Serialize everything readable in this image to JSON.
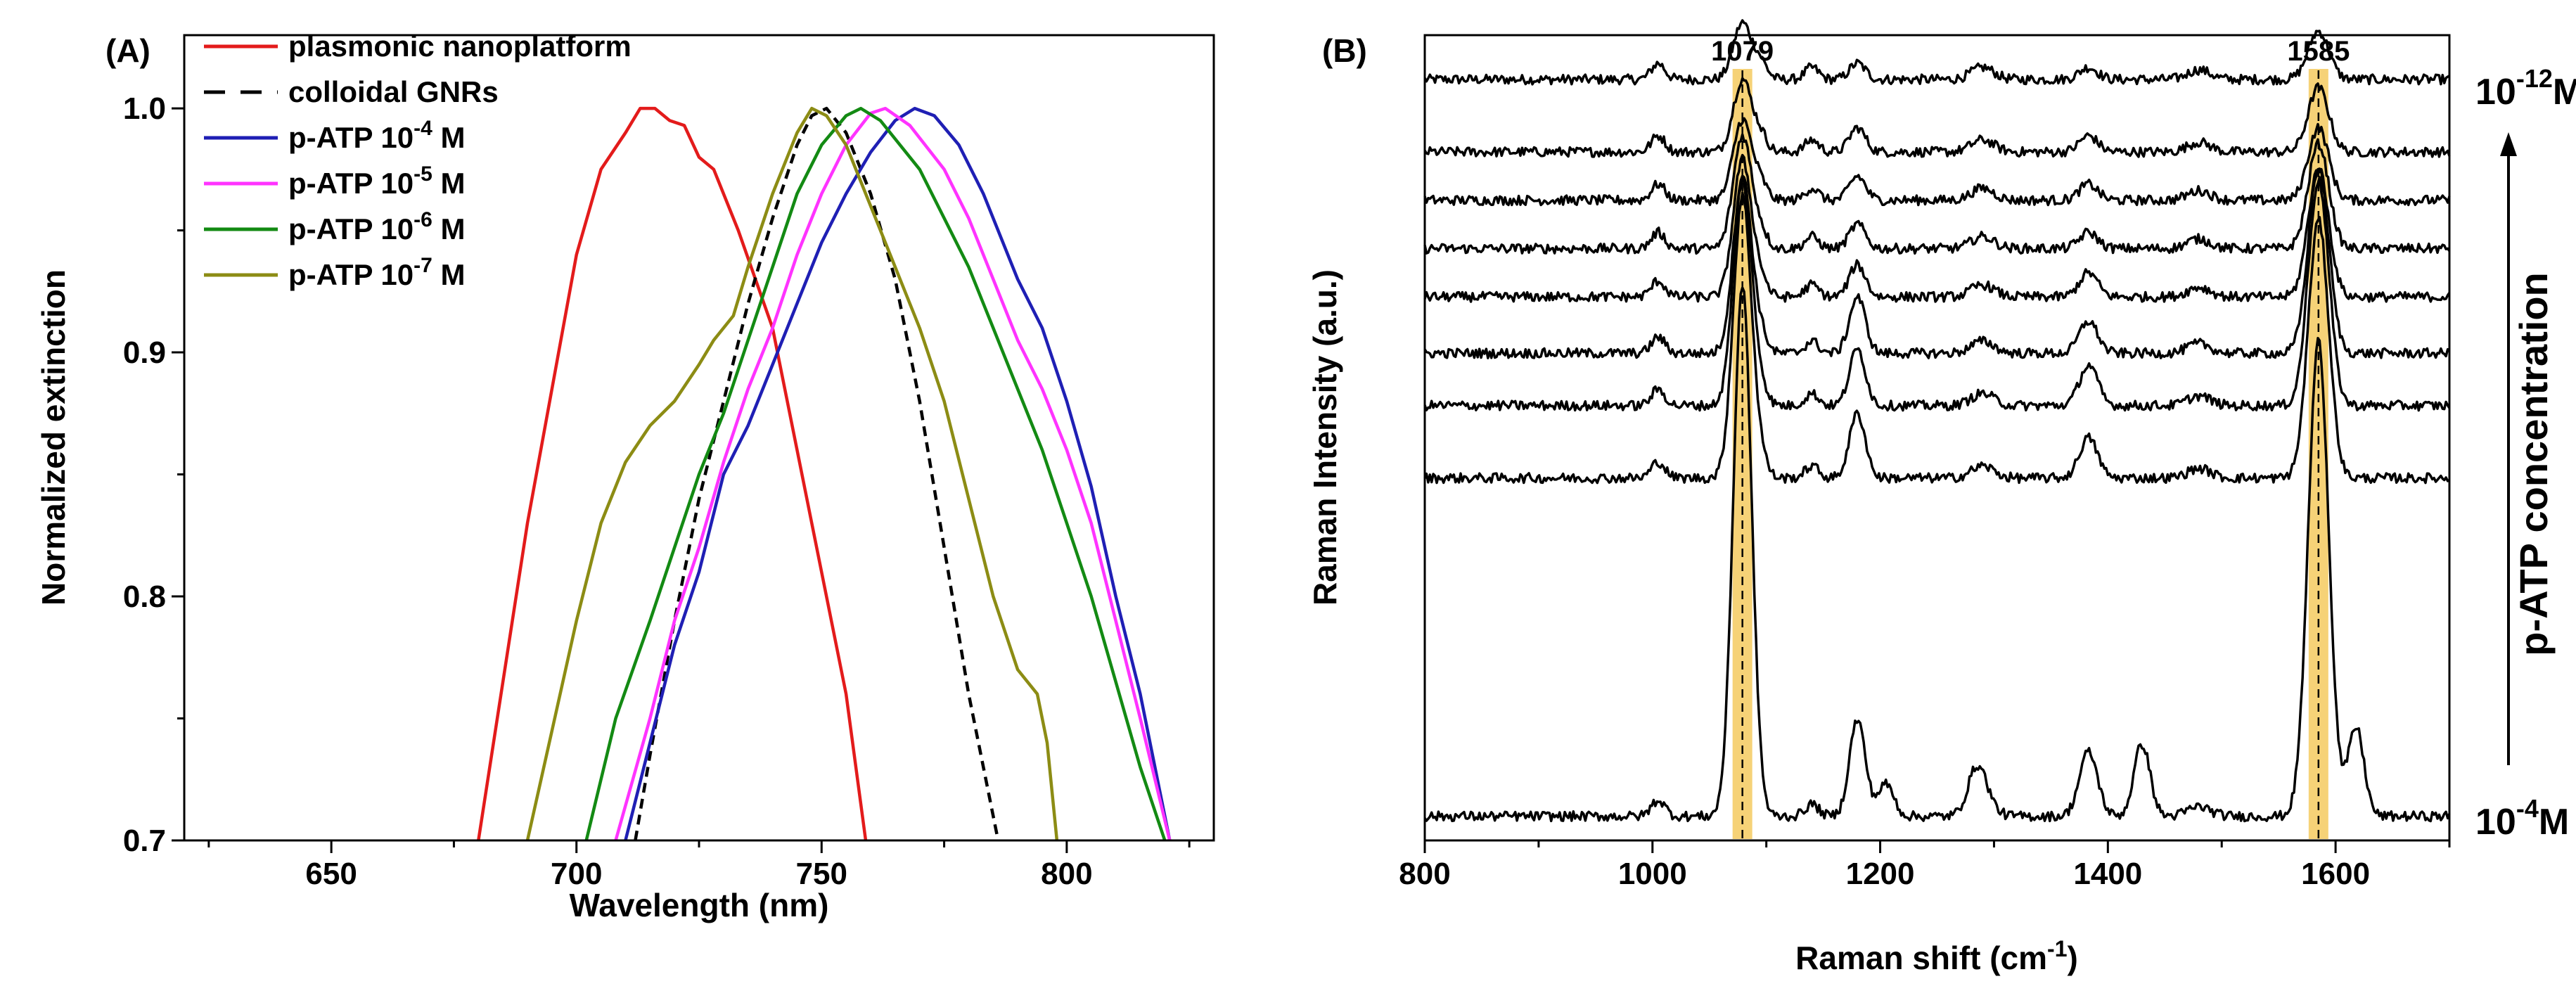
{
  "colors": {
    "plasmonic": "#e31b1b",
    "colloidal": "#000000",
    "atp4": "#1f1fb4",
    "atp5": "#ff33ff",
    "atp6": "#138a13",
    "atp7": "#8c8c14",
    "raman": "#000000",
    "highlight": "#f3c34a"
  },
  "chart_data": [
    {
      "panel": "(A)",
      "type": "line",
      "xlabel": "Wavelength (nm)",
      "ylabel": "Normalized extinction",
      "xlim": [
        620,
        830
      ],
      "ylim": [
        0.7,
        1.03
      ],
      "xticks": [
        650,
        700,
        750,
        800
      ],
      "xtick_labels": [
        "650",
        "700",
        "750",
        "800"
      ],
      "yticks": [
        0.7,
        0.8,
        0.9,
        1.0
      ],
      "ytick_labels": [
        "0.7",
        "0.8",
        "0.9",
        "1.0"
      ],
      "legend": {
        "placement": "top-left",
        "entries": [
          {
            "key": "plasmonic",
            "text": "plasmonic nanoplatform"
          },
          {
            "key": "colloidal",
            "text": "colloidal GNRs"
          },
          {
            "key": "atp4",
            "base": "p-ATP 10",
            "exp": "-4",
            "unit": " M"
          },
          {
            "key": "atp5",
            "base": "p-ATP 10",
            "exp": "-5",
            "unit": " M"
          },
          {
            "key": "atp6",
            "base": "p-ATP 10",
            "exp": "-6",
            "unit": " M"
          },
          {
            "key": "atp7",
            "base": "p-ATP 10",
            "exp": "-7",
            "unit": " M"
          }
        ]
      },
      "series": [
        {
          "key": "plasmonic",
          "name": "plasmonic nanoplatform",
          "style": "solid",
          "x": [
            680,
            690,
            700,
            705,
            710,
            713,
            716,
            719,
            722,
            725,
            728,
            733,
            740,
            748,
            755,
            759
          ],
          "y": [
            0.7,
            0.83,
            0.94,
            0.975,
            0.99,
            1.0,
            1.0,
            0.995,
            0.993,
            0.98,
            0.975,
            0.95,
            0.91,
            0.83,
            0.76,
            0.7
          ]
        },
        {
          "key": "colloidal",
          "name": "colloidal GNRs",
          "style": "dashed",
          "x": [
            712,
            715,
            720,
            725,
            730,
            735,
            740,
            745,
            748,
            751,
            755,
            760,
            765,
            770,
            775,
            780,
            786
          ],
          "y": [
            0.7,
            0.735,
            0.79,
            0.84,
            0.88,
            0.92,
            0.955,
            0.985,
            0.997,
            1.0,
            0.99,
            0.965,
            0.93,
            0.88,
            0.82,
            0.76,
            0.7
          ]
        },
        {
          "key": "atp4",
          "name": "p-ATP 10-4 M",
          "style": "solid",
          "x": [
            710,
            715,
            720,
            725,
            730,
            735,
            740,
            745,
            750,
            755,
            760,
            765,
            769,
            773,
            778,
            783,
            790,
            795,
            800,
            805,
            810,
            815,
            821
          ],
          "y": [
            0.7,
            0.74,
            0.78,
            0.81,
            0.85,
            0.87,
            0.895,
            0.92,
            0.945,
            0.965,
            0.982,
            0.995,
            1.0,
            0.997,
            0.985,
            0.965,
            0.93,
            0.91,
            0.88,
            0.845,
            0.8,
            0.76,
            0.7
          ]
        },
        {
          "key": "atp5",
          "name": "p-ATP 10-5 M",
          "style": "solid",
          "x": [
            708,
            715,
            720,
            725,
            730,
            735,
            740,
            745,
            750,
            755,
            760,
            763,
            768,
            775,
            780,
            785,
            790,
            795,
            800,
            805,
            810,
            815,
            821
          ],
          "y": [
            0.7,
            0.75,
            0.79,
            0.82,
            0.855,
            0.885,
            0.91,
            0.94,
            0.965,
            0.985,
            0.998,
            1.0,
            0.993,
            0.975,
            0.955,
            0.93,
            0.905,
            0.885,
            0.86,
            0.83,
            0.79,
            0.75,
            0.7
          ]
        },
        {
          "key": "atp6",
          "name": "p-ATP 10-6 M",
          "style": "solid",
          "x": [
            702,
            708,
            715,
            720,
            725,
            730,
            735,
            740,
            745,
            750,
            755,
            758,
            762,
            770,
            775,
            780,
            785,
            790,
            795,
            800,
            805,
            810,
            815,
            820
          ],
          "y": [
            0.7,
            0.75,
            0.79,
            0.82,
            0.85,
            0.875,
            0.905,
            0.935,
            0.965,
            0.985,
            0.997,
            1.0,
            0.995,
            0.975,
            0.955,
            0.935,
            0.91,
            0.885,
            0.86,
            0.83,
            0.8,
            0.765,
            0.73,
            0.7
          ]
        },
        {
          "key": "atp7",
          "name": "p-ATP 10-7 M",
          "style": "solid",
          "x": [
            690,
            695,
            700,
            705,
            710,
            715,
            720,
            725,
            728,
            732,
            735,
            740,
            745,
            748,
            751,
            755,
            760,
            765,
            770,
            775,
            780,
            785,
            790,
            794,
            796,
            798
          ],
          "y": [
            0.7,
            0.745,
            0.79,
            0.83,
            0.855,
            0.87,
            0.88,
            0.895,
            0.905,
            0.915,
            0.935,
            0.965,
            0.99,
            1.0,
            0.997,
            0.985,
            0.96,
            0.935,
            0.91,
            0.88,
            0.84,
            0.8,
            0.77,
            0.76,
            0.74,
            0.7
          ]
        }
      ]
    },
    {
      "panel": "(B)",
      "type": "line",
      "xlabel": "Raman shift (cm",
      "xlabel_sup": "-1",
      "xlabel_end": ")",
      "ylabel": "Raman Intensity (a.u.)",
      "xlim": [
        800,
        1700
      ],
      "xticks": [
        800,
        1000,
        1200,
        1400,
        1600
      ],
      "xtick_labels": [
        "800",
        "1000",
        "1200",
        "1400",
        "1600"
      ],
      "highlight_peaks": [
        1079,
        1585
      ],
      "peak_labels": [
        "1079",
        "1585"
      ],
      "right_axis_label": "p-ATP concentration",
      "top_conc": {
        "base": "10",
        "exp": "-12",
        "unit": "M"
      },
      "bottom_conc": {
        "base": "10",
        "exp": "-4",
        "unit": "M"
      },
      "n_spectra": 9,
      "baselines": [
        0.055,
        0.145,
        0.205,
        0.265,
        0.325,
        0.395,
        0.46,
        0.55,
        0.865
      ],
      "peak_amplitudes": [
        [
          0.07,
          0.06,
          0.02,
          0.015
        ],
        [
          0.09,
          0.08,
          0.03,
          0.02
        ],
        [
          0.1,
          0.09,
          0.03,
          0.02
        ],
        [
          0.14,
          0.13,
          0.03,
          0.02
        ],
        [
          0.17,
          0.16,
          0.04,
          0.03
        ],
        [
          0.22,
          0.23,
          0.07,
          0.04
        ],
        [
          0.28,
          0.28,
          0.07,
          0.05
        ],
        [
          0.35,
          0.32,
          0.08,
          0.05
        ],
        [
          0.66,
          0.59,
          0.12,
          0.08
        ]
      ]
    }
  ]
}
